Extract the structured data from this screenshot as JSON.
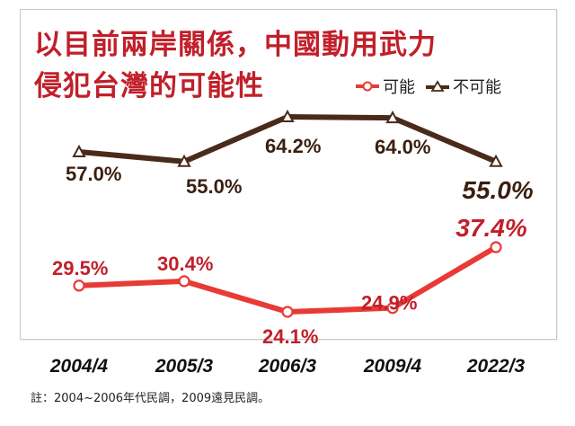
{
  "title_line1": "以目前兩岸關係，中國動用武力",
  "title_line2": "侵犯台灣的可能性",
  "note": "註：2004~2006年代民調，2009遠見民調。",
  "colors": {
    "possible": "#e83a36",
    "not_possible": "#4a2a18",
    "title": "#c0202a"
  },
  "chart_data": {
    "type": "line",
    "categories": [
      "2004/4",
      "2005/3",
      "2006/3",
      "2009/4",
      "2022/3"
    ],
    "series": [
      {
        "name": "可能",
        "values": [
          29.5,
          30.4,
          24.1,
          24.9,
          37.4
        ],
        "labels": [
          "29.5%",
          "30.4%",
          "24.1%",
          "24.9%",
          "37.4%"
        ],
        "marker": "circle"
      },
      {
        "name": "不可能",
        "values": [
          57.0,
          55.0,
          64.2,
          64.0,
          55.0
        ],
        "labels": [
          "57.0%",
          "55.0%",
          "64.2%",
          "64.0%",
          "55.0%"
        ],
        "marker": "triangle"
      }
    ],
    "ylim": [
      20,
      70
    ],
    "grid": false,
    "legend_position": "top-right"
  }
}
